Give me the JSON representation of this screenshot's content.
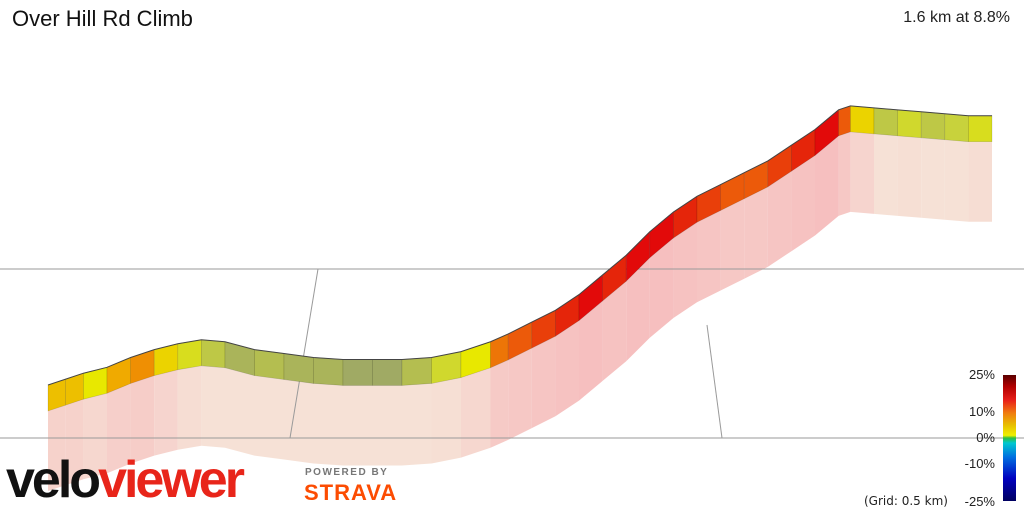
{
  "header": {
    "title": "Over Hill Rd Climb",
    "summary": "1.6 km at 8.8%"
  },
  "legend": {
    "labels": [
      "25%",
      "10%",
      "0%",
      "-10%",
      "-25%"
    ],
    "grid_note": "(Grid: 0.5 km)"
  },
  "branding": {
    "velo": "velo",
    "viewer": "viewer",
    "powered_by": "POWERED BY",
    "strava": "STRAVA"
  },
  "colors": {
    "gradient_high": "#e00000",
    "gradient_flat": "#e8e800",
    "shadow_tint": "#f3c9c9",
    "grid_line": "#9a9a9a"
  },
  "chart_data": {
    "type": "area",
    "title": "Over Hill Rd Climb",
    "subtitle": "1.6 km at 8.8%",
    "xlabel": "",
    "ylabel": "",
    "x_unit": "km",
    "y_unit": "m",
    "xlim": [
      0,
      1.6
    ],
    "ylim": [
      0,
      145
    ],
    "grid": "0.5 km",
    "series": [
      {
        "name": "",
        "x": [
          0.0,
          0.03,
          0.06,
          0.1,
          0.14,
          0.18,
          0.22,
          0.26,
          0.3,
          0.35,
          0.4,
          0.45,
          0.5,
          0.55,
          0.6,
          0.65,
          0.7,
          0.75,
          0.78,
          0.82,
          0.86,
          0.9,
          0.94,
          0.98,
          1.02,
          1.06,
          1.1,
          1.14,
          1.18,
          1.22,
          1.26,
          1.3,
          1.34,
          1.36,
          1.4,
          1.44,
          1.48,
          1.52,
          1.56,
          1.6
        ],
        "elevation": [
          0,
          3,
          6,
          9,
          14,
          18,
          21,
          23,
          22,
          18,
          16,
          14,
          13,
          13,
          13,
          14,
          17,
          22,
          26,
          32,
          38,
          46,
          56,
          66,
          78,
          88,
          96,
          102,
          108,
          114,
          122,
          130,
          140,
          142,
          141,
          140,
          139,
          138,
          137,
          137
        ],
        "gradient_pct": [
          10,
          10,
          8,
          11,
          12,
          9,
          6,
          3,
          1,
          2,
          1,
          1,
          0,
          0,
          2,
          5,
          8,
          13,
          14,
          15,
          16,
          17,
          16,
          17,
          17,
          16,
          15,
          14,
          14,
          15,
          16,
          17,
          14,
          9,
          3,
          5,
          3,
          4,
          6,
          4
        ]
      }
    ]
  }
}
